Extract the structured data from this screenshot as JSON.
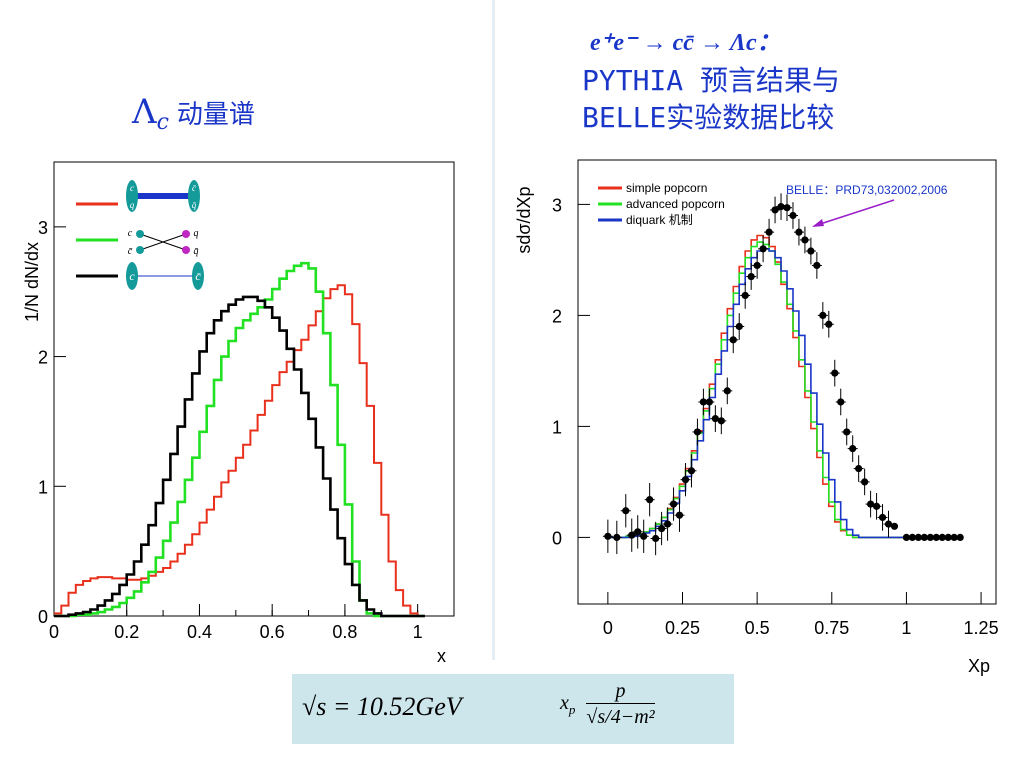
{
  "slide": {
    "left_title_symbol": "Λ",
    "left_title_subscript": "c",
    "left_title_text": "动量谱",
    "right_formula": "e⁺e⁻ → cc̄ → Λc：",
    "right_title_line1": "PYTHIA 预言结果与",
    "right_title_line2": "BELLE实验数据比较",
    "bottom_formula_1": "√s = 10.52GeV",
    "bottom_formula_2_lhs": "x",
    "bottom_formula_2_sub": "p",
    "bottom_formula_2_num": "p",
    "bottom_formula_2_den": "√s/4−m²"
  },
  "colors": {
    "red": "#e8301c",
    "green": "#22e022",
    "black": "#000000",
    "blue": "#1a36c8",
    "teal": "#159a9a",
    "magenta": "#c026c0",
    "formula_bg": "#cde6ec"
  },
  "chart_data": [
    {
      "type": "line",
      "ylabel": "1/N dN/dx",
      "xlabel": "x",
      "xlim": [
        0,
        1.1
      ],
      "ylim": [
        0,
        3.5
      ],
      "xticks": [
        "0",
        "0.2",
        "0.4",
        "0.6",
        "0.8",
        "1"
      ],
      "yticks": [
        "0",
        "1",
        "2",
        "3"
      ],
      "legend_icons": [
        "red-diagram-pair",
        "green-diagram-crossed",
        "black-diagram-direct"
      ],
      "legend_labels": {
        "c": "c",
        "q": "q",
        "cbar": "c̄",
        "qbar": "q̄"
      },
      "series": [
        {
          "color": "red",
          "x": [
            0.0,
            0.02,
            0.04,
            0.06,
            0.08,
            0.1,
            0.12,
            0.14,
            0.16,
            0.18,
            0.2,
            0.22,
            0.24,
            0.26,
            0.28,
            0.3,
            0.32,
            0.34,
            0.36,
            0.38,
            0.4,
            0.42,
            0.44,
            0.46,
            0.48,
            0.5,
            0.52,
            0.54,
            0.56,
            0.58,
            0.6,
            0.62,
            0.64,
            0.66,
            0.68,
            0.7,
            0.72,
            0.74,
            0.76,
            0.78,
            0.8,
            0.82,
            0.84,
            0.86,
            0.88,
            0.9,
            0.92,
            0.94,
            0.96,
            0.98,
            1.0
          ],
          "y": [
            0.02,
            0.08,
            0.18,
            0.24,
            0.27,
            0.29,
            0.3,
            0.3,
            0.29,
            0.29,
            0.28,
            0.28,
            0.29,
            0.31,
            0.34,
            0.37,
            0.42,
            0.48,
            0.55,
            0.63,
            0.72,
            0.82,
            0.92,
            1.03,
            1.12,
            1.22,
            1.32,
            1.43,
            1.55,
            1.66,
            1.78,
            1.88,
            1.96,
            2.05,
            2.13,
            2.24,
            2.35,
            2.45,
            2.52,
            2.55,
            2.48,
            2.25,
            1.95,
            1.62,
            1.18,
            0.78,
            0.42,
            0.2,
            0.08,
            0.02,
            0.0
          ]
        },
        {
          "color": "green",
          "x": [
            0.0,
            0.02,
            0.04,
            0.06,
            0.08,
            0.1,
            0.12,
            0.14,
            0.16,
            0.18,
            0.2,
            0.22,
            0.24,
            0.26,
            0.28,
            0.3,
            0.32,
            0.34,
            0.36,
            0.38,
            0.4,
            0.42,
            0.44,
            0.46,
            0.48,
            0.5,
            0.52,
            0.54,
            0.56,
            0.58,
            0.6,
            0.62,
            0.64,
            0.66,
            0.68,
            0.7,
            0.72,
            0.74,
            0.76,
            0.78,
            0.8,
            0.82,
            0.84,
            0.86,
            0.88,
            0.9,
            0.92,
            0.94,
            0.96,
            0.98,
            1.0
          ],
          "y": [
            0.0,
            0.0,
            0.0,
            0.01,
            0.01,
            0.02,
            0.03,
            0.05,
            0.07,
            0.1,
            0.14,
            0.19,
            0.26,
            0.34,
            0.45,
            0.58,
            0.72,
            0.88,
            1.05,
            1.22,
            1.42,
            1.62,
            1.82,
            2.0,
            2.12,
            2.22,
            2.28,
            2.33,
            2.38,
            2.44,
            2.52,
            2.6,
            2.66,
            2.7,
            2.72,
            2.68,
            2.5,
            2.18,
            1.78,
            1.32,
            0.86,
            0.42,
            0.12,
            0.02,
            0.0,
            0.0,
            0.0,
            0.0,
            0.0,
            0.0,
            0.0
          ]
        },
        {
          "color": "black",
          "x": [
            0.0,
            0.02,
            0.04,
            0.06,
            0.08,
            0.1,
            0.12,
            0.14,
            0.16,
            0.18,
            0.2,
            0.22,
            0.24,
            0.26,
            0.28,
            0.3,
            0.32,
            0.34,
            0.36,
            0.38,
            0.4,
            0.42,
            0.44,
            0.46,
            0.48,
            0.5,
            0.52,
            0.54,
            0.56,
            0.58,
            0.6,
            0.62,
            0.64,
            0.66,
            0.68,
            0.7,
            0.72,
            0.74,
            0.76,
            0.78,
            0.8,
            0.82,
            0.84,
            0.86,
            0.88,
            0.9,
            0.92,
            0.94,
            0.96,
            0.98,
            1.0
          ],
          "y": [
            0.0,
            0.0,
            0.01,
            0.02,
            0.03,
            0.05,
            0.08,
            0.12,
            0.17,
            0.24,
            0.32,
            0.42,
            0.55,
            0.7,
            0.87,
            1.05,
            1.25,
            1.46,
            1.67,
            1.87,
            2.04,
            2.18,
            2.28,
            2.35,
            2.4,
            2.44,
            2.46,
            2.46,
            2.43,
            2.38,
            2.3,
            2.2,
            2.06,
            1.9,
            1.72,
            1.52,
            1.3,
            1.06,
            0.82,
            0.6,
            0.4,
            0.24,
            0.12,
            0.05,
            0.02,
            0.0,
            0.0,
            0.0,
            0.0,
            0.0,
            0.0
          ]
        }
      ]
    },
    {
      "type": "line",
      "ylabel": "sdσ/dXp",
      "xlabel": "Xp",
      "xlim": [
        -0.1,
        1.3
      ],
      "ylim": [
        -0.6,
        3.4
      ],
      "xticks": [
        "0",
        "0.25",
        "0.5",
        "0.75",
        "1",
        "1.25"
      ],
      "yticks": [
        "0",
        "1",
        "2",
        "3"
      ],
      "legend": [
        "simple popcorn",
        "advanced popcorn",
        "diquark  机制"
      ],
      "annotation": "BELLE：PRD73,032002,2006",
      "series": [
        {
          "name": "simple popcorn",
          "color": "red",
          "x": [
            0.0,
            0.02,
            0.04,
            0.06,
            0.08,
            0.1,
            0.12,
            0.14,
            0.16,
            0.18,
            0.2,
            0.22,
            0.24,
            0.26,
            0.28,
            0.3,
            0.32,
            0.34,
            0.36,
            0.38,
            0.4,
            0.42,
            0.44,
            0.46,
            0.48,
            0.5,
            0.52,
            0.54,
            0.56,
            0.58,
            0.6,
            0.62,
            0.64,
            0.66,
            0.68,
            0.7,
            0.72,
            0.74,
            0.76,
            0.78,
            0.8,
            0.82,
            0.84,
            0.86,
            0.88,
            0.9,
            0.92,
            0.94,
            0.96,
            0.98,
            1.0,
            1.02
          ],
          "y": [
            0.0,
            0.0,
            0.0,
            0.01,
            0.02,
            0.03,
            0.05,
            0.08,
            0.12,
            0.18,
            0.26,
            0.36,
            0.48,
            0.62,
            0.78,
            0.96,
            1.16,
            1.38,
            1.6,
            1.84,
            2.06,
            2.26,
            2.44,
            2.58,
            2.68,
            2.72,
            2.7,
            2.62,
            2.48,
            2.28,
            2.06,
            1.8,
            1.54,
            1.26,
            0.98,
            0.72,
            0.48,
            0.28,
            0.14,
            0.06,
            0.02,
            0.0,
            0.0,
            0.0,
            0.0,
            0.0,
            0.0,
            0.0,
            0.0,
            0.0,
            0.0,
            0.0
          ]
        },
        {
          "name": "advanced popcorn",
          "color": "green",
          "x": [
            0.0,
            0.02,
            0.04,
            0.06,
            0.08,
            0.1,
            0.12,
            0.14,
            0.16,
            0.18,
            0.2,
            0.22,
            0.24,
            0.26,
            0.28,
            0.3,
            0.32,
            0.34,
            0.36,
            0.38,
            0.4,
            0.42,
            0.44,
            0.46,
            0.48,
            0.5,
            0.52,
            0.54,
            0.56,
            0.58,
            0.6,
            0.62,
            0.64,
            0.66,
            0.68,
            0.7,
            0.72,
            0.74,
            0.76,
            0.78,
            0.8,
            0.82,
            0.84,
            0.86,
            0.88,
            0.9,
            0.92,
            0.94,
            0.96,
            0.98,
            1.0,
            1.02
          ],
          "y": [
            0.0,
            0.0,
            0.0,
            0.01,
            0.02,
            0.03,
            0.05,
            0.08,
            0.12,
            0.18,
            0.25,
            0.35,
            0.46,
            0.6,
            0.76,
            0.94,
            1.14,
            1.34,
            1.56,
            1.78,
            2.0,
            2.2,
            2.38,
            2.52,
            2.62,
            2.66,
            2.64,
            2.58,
            2.46,
            2.3,
            2.1,
            1.86,
            1.6,
            1.32,
            1.04,
            0.78,
            0.54,
            0.32,
            0.16,
            0.07,
            0.02,
            0.0,
            0.0,
            0.0,
            0.0,
            0.0,
            0.0,
            0.0,
            0.0,
            0.0,
            0.0,
            0.0
          ]
        },
        {
          "name": "diquark  机制",
          "color": "blue",
          "x": [
            0.0,
            0.02,
            0.04,
            0.06,
            0.08,
            0.1,
            0.12,
            0.14,
            0.16,
            0.18,
            0.2,
            0.22,
            0.24,
            0.26,
            0.28,
            0.3,
            0.32,
            0.34,
            0.36,
            0.38,
            0.4,
            0.42,
            0.44,
            0.46,
            0.48,
            0.5,
            0.52,
            0.54,
            0.56,
            0.58,
            0.6,
            0.62,
            0.64,
            0.66,
            0.68,
            0.7,
            0.72,
            0.74,
            0.76,
            0.78,
            0.8,
            0.82,
            0.84,
            0.86,
            0.88,
            0.9,
            0.92,
            0.94,
            0.96,
            0.98,
            1.0,
            1.02
          ],
          "y": [
            0.0,
            0.0,
            0.0,
            0.0,
            0.01,
            0.02,
            0.04,
            0.06,
            0.1,
            0.15,
            0.22,
            0.31,
            0.42,
            0.55,
            0.7,
            0.87,
            1.06,
            1.26,
            1.47,
            1.68,
            1.9,
            2.1,
            2.28,
            2.42,
            2.52,
            2.58,
            2.6,
            2.58,
            2.52,
            2.4,
            2.24,
            2.04,
            1.82,
            1.56,
            1.3,
            1.02,
            0.76,
            0.52,
            0.32,
            0.16,
            0.07,
            0.02,
            0.0,
            0.0,
            0.0,
            0.0,
            0.0,
            0.0,
            0.0,
            0.0,
            0.0,
            0.0
          ]
        },
        {
          "name": "BELLE data",
          "color": "black",
          "x": [
            0.0,
            0.03,
            0.06,
            0.08,
            0.1,
            0.12,
            0.14,
            0.16,
            0.18,
            0.2,
            0.22,
            0.24,
            0.26,
            0.28,
            0.3,
            0.32,
            0.34,
            0.36,
            0.38,
            0.4,
            0.42,
            0.44,
            0.46,
            0.48,
            0.5,
            0.52,
            0.54,
            0.56,
            0.58,
            0.6,
            0.62,
            0.64,
            0.66,
            0.68,
            0.7,
            0.72,
            0.74,
            0.76,
            0.78,
            0.8,
            0.82,
            0.84,
            0.86,
            0.88,
            0.9,
            0.92,
            0.94,
            0.96,
            1.0,
            1.02,
            1.04,
            1.06,
            1.08,
            1.1,
            1.12,
            1.14,
            1.16,
            1.18
          ],
          "y": [
            0.01,
            0.0,
            0.24,
            0.02,
            0.05,
            0.01,
            0.34,
            -0.01,
            0.08,
            0.12,
            0.3,
            0.2,
            0.52,
            0.6,
            0.95,
            1.22,
            1.22,
            1.07,
            1.05,
            1.32,
            1.78,
            1.9,
            2.18,
            2.35,
            2.45,
            2.6,
            2.75,
            2.95,
            2.98,
            2.97,
            2.9,
            2.75,
            2.68,
            2.58,
            2.45,
            2.0,
            1.92,
            1.48,
            1.22,
            0.95,
            0.8,
            0.62,
            0.5,
            0.3,
            0.28,
            0.18,
            0.12,
            0.1,
            0.0,
            0.0,
            0.0,
            0.0,
            0.0,
            0.0,
            0.0,
            0.0,
            0.0,
            0.0
          ]
        }
      ]
    }
  ]
}
